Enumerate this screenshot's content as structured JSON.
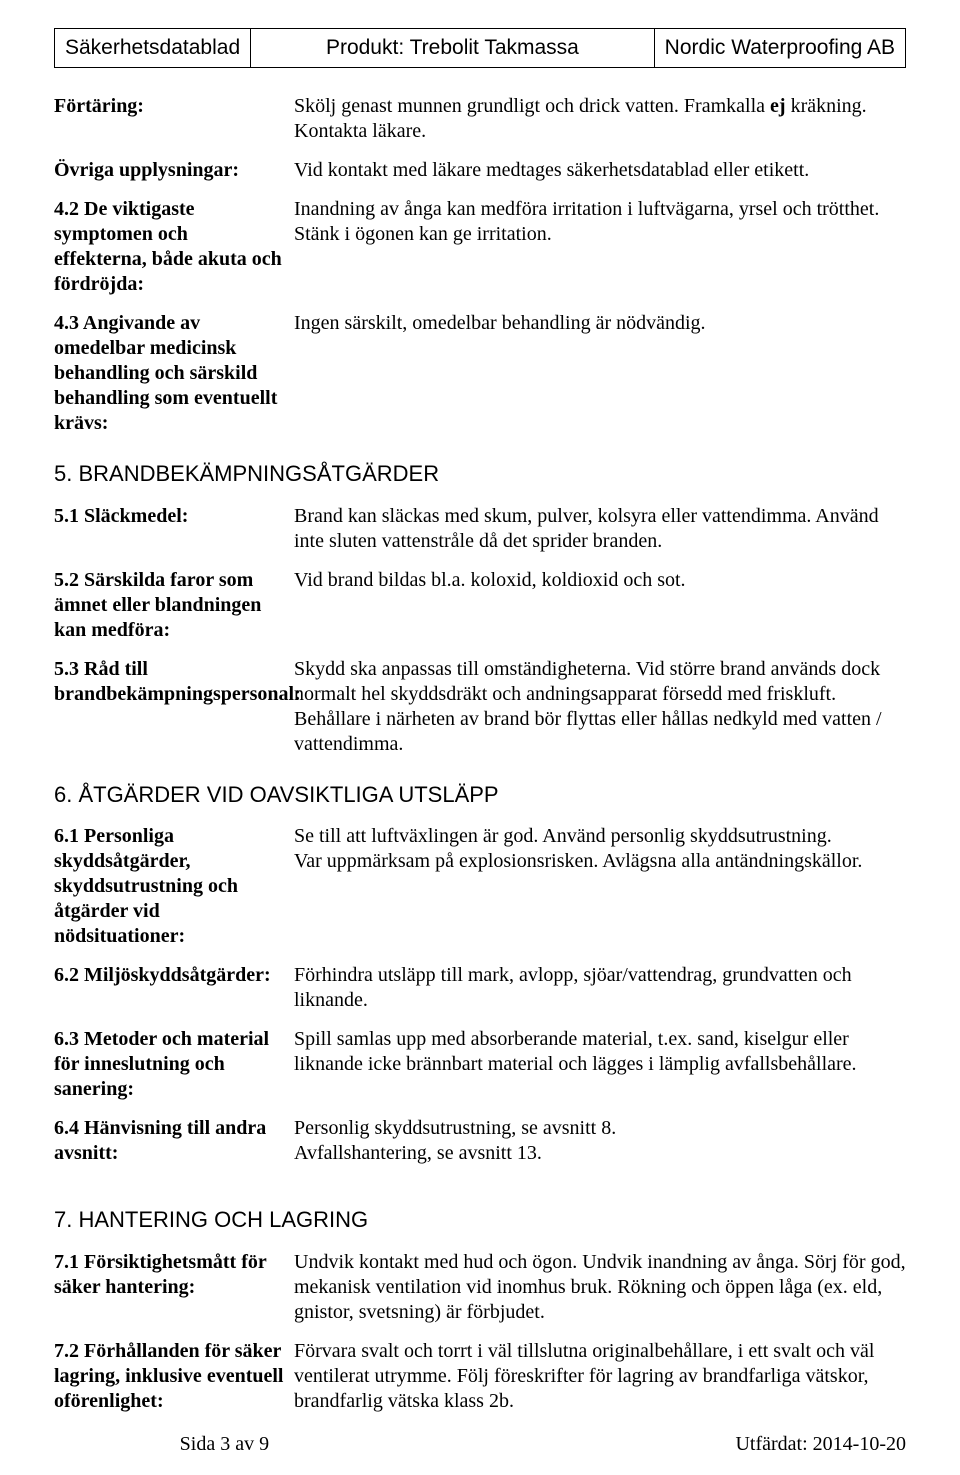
{
  "header": {
    "left": "Säkerhetsdatablad",
    "center": "Produkt: Trebolit Takmassa",
    "right": "Nordic Waterproofing AB"
  },
  "rows": [
    {
      "label": "Förtäring:",
      "value_html": "Skölj genast munnen grundligt och drick vatten. Framkalla <b>ej</b> kräkning. Kontakta läkare."
    },
    {
      "label": "Övriga upplysningar:",
      "value_html": "Vid kontakt med läkare medtages säkerhetsdatablad eller etikett."
    },
    {
      "label": "4.2 De viktigaste symptomen och effekterna, både akuta och fördröjda:",
      "value_html": "Inandning av ånga kan medföra irritation i luftvägarna, yrsel och trötthet. Stänk i ögonen kan ge irritation."
    },
    {
      "label": "4.3 Angivande av omedelbar medicinsk behandling och särskild behandling som eventuellt krävs:",
      "value_html": "Ingen särskilt, omedelbar behandling är nödvändig."
    }
  ],
  "section5": {
    "title": "5. BRANDBEKÄMPNINGSÅTGÄRDER",
    "items": [
      {
        "label": "5.1 Släckmedel:",
        "value_html": "Brand kan släckas med skum, pulver, kolsyra eller vattendimma. Använd inte sluten vattenstråle då det sprider branden."
      },
      {
        "label": "5.2 Särskilda faror som ämnet eller blandningen kan medföra:",
        "value_html": "Vid brand bildas bl.a. koloxid, koldioxid och sot."
      },
      {
        "label": "5.3 Råd till brandbekämpningspersonal:",
        "value_html": "Skydd ska anpassas till omständigheterna. Vid större brand används dock normalt hel skyddsdräkt och andningsapparat försedd med friskluft.<br>Behållare i närheten av brand bör flyttas eller hållas nedkyld med vatten / vattendimma."
      }
    ]
  },
  "section6": {
    "title": "6. ÅTGÄRDER VID OAVSIKTLIGA UTSLÄPP",
    "items": [
      {
        "label": "6.1 Personliga skyddsåtgärder, skyddsutrustning och åtgärder vid nödsituationer:",
        "value_html": "Se till att luftväxlingen är god. Använd personlig skyddsutrustning.<br>Var uppmärksam på explosionsrisken. Avlägsna alla antändningskällor."
      },
      {
        "label": "6.2 Miljöskyddsåtgärder:",
        "value_html": "Förhindra utsläpp till mark, avlopp, sjöar/vattendrag, grundvatten och liknande."
      },
      {
        "label": "6.3 Metoder och material för inneslutning och sanering:",
        "value_html": "Spill samlas upp med absorberande material, t.ex. sand, kiselgur eller liknande icke brännbart material och lägges i lämplig avfallsbehållare."
      },
      {
        "label": "6.4 Hänvisning till andra avsnitt:",
        "value_html": "Personlig skyddsutrustning, se avsnitt 8.<br>Avfallshantering, se avsnitt 13."
      }
    ]
  },
  "section7": {
    "title": "7. HANTERING OCH LAGRING",
    "items": [
      {
        "label": "7.1 Försiktighetsmått för säker hantering:",
        "value_html": "Undvik kontakt med hud och ögon. Undvik inandning av ånga. Sörj för god, mekanisk ventilation vid inomhus bruk. Rökning och öppen låga (ex. eld, gnistor, svetsning) är förbjudet."
      },
      {
        "label": "7.2 Förhållanden för säker lagring, inklusive eventuell oförenlighet:",
        "value_html": "Förvara svalt och torrt i väl tillslutna originalbehållare, i ett svalt och väl ventilerat utrymme. Följ föreskrifter för lagring av brandfarliga vätskor, brandfarlig vätska klass 2b."
      }
    ]
  },
  "footer": {
    "page": "Sida 3 av 9",
    "issued": "Utfärdat: 2014-10-20"
  }
}
